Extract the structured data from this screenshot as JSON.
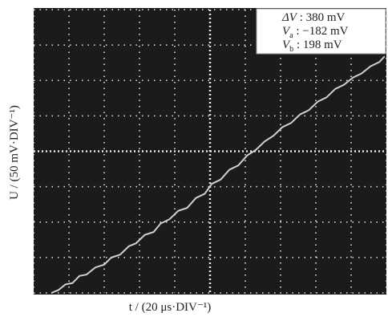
{
  "chart_data": {
    "type": "line",
    "x_label": "t / (20  μs·DIV⁻¹)",
    "y_label": "U / (50 mV·DIV⁻¹)",
    "annotations": [
      {
        "symbol": "ΔV",
        "text": " : 380 mV"
      },
      {
        "symbol": "V",
        "subscript": "a",
        "text": " : −182 mV"
      },
      {
        "symbol": "V",
        "subscript": "b",
        "text": " : 198 mV"
      }
    ],
    "x": [
      10,
      14,
      18,
      22,
      26,
      30,
      35,
      40,
      44,
      49,
      54,
      58,
      63,
      68,
      72,
      77,
      82,
      87,
      92,
      97,
      101,
      106,
      111,
      116,
      121,
      126,
      131,
      136,
      141,
      146,
      151,
      156,
      161,
      166,
      171,
      176,
      181,
      186,
      191,
      196,
      199
    ],
    "series": [
      {
        "color": "#cfcfcf",
        "values": [
          -200,
          -196,
          -188,
          -186,
          -176,
          -174,
          -164,
          -160,
          -150,
          -146,
          -134,
          -130,
          -118,
          -114,
          -102,
          -96,
          -84,
          -80,
          -66,
          -60,
          -46,
          -40,
          -26,
          -20,
          -6,
          2,
          14,
          22,
          34,
          40,
          52,
          58,
          70,
          76,
          88,
          94,
          104,
          110,
          120,
          126,
          134
        ]
      }
    ],
    "xlim": [
      0,
      200
    ],
    "ylim": [
      -200,
      200
    ],
    "xticks": [
      0,
      20,
      40,
      60,
      80,
      100,
      120,
      140,
      160,
      180,
      200
    ],
    "yticks": [
      -200,
      -150,
      -100,
      -50,
      0,
      50,
      100,
      150,
      200
    ],
    "grid": true
  }
}
